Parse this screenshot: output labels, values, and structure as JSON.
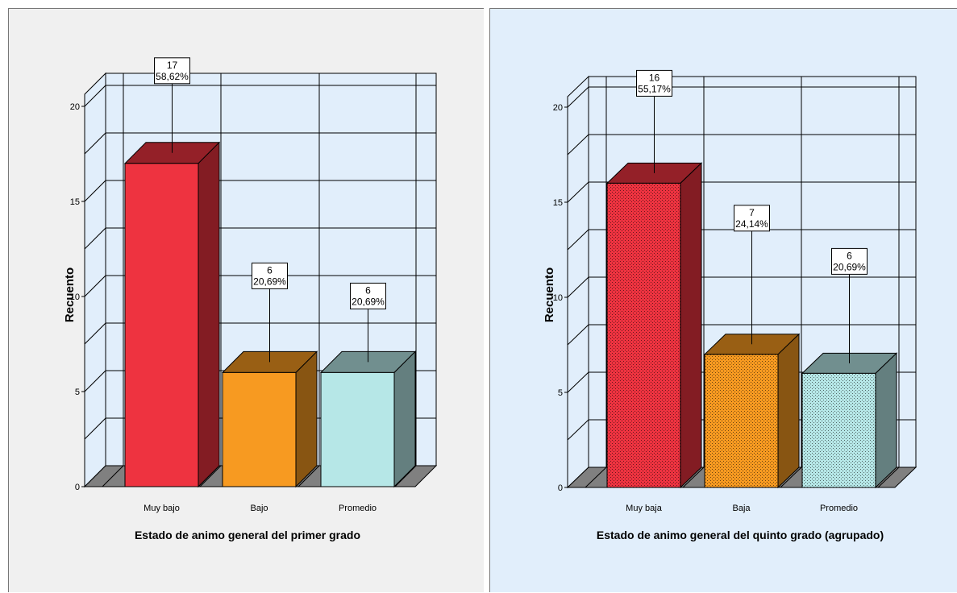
{
  "colors": {
    "wall": "#e1eefb",
    "floor": "#808080",
    "grid": "#000000",
    "muy_bajo": "#ee3340",
    "bajo": "#f79a21",
    "promedio": "#b6e7e7"
  },
  "chart_data": [
    {
      "type": "bar",
      "three_d": true,
      "pattern": "solid",
      "categories": [
        "Muy bajo",
        "Bajo",
        "Promedio"
      ],
      "values": [
        17,
        6,
        6
      ],
      "labels": [
        [
          "17",
          "58,62%"
        ],
        [
          "6",
          "20,69%"
        ],
        [
          "6",
          "20,69%"
        ]
      ],
      "colors": [
        "#ee3340",
        "#f79a21",
        "#b6e7e7"
      ],
      "xlabel": "Estado de animo general del primer grado",
      "ylabel": "Recuento",
      "ylim": [
        0,
        20
      ],
      "yticks": [
        "0",
        "5",
        "10",
        "15",
        "20"
      ],
      "grid": true
    },
    {
      "type": "bar",
      "three_d": true,
      "pattern": "dotted",
      "categories": [
        "Muy baja",
        "Baja",
        "Promedio"
      ],
      "values": [
        16,
        7,
        6
      ],
      "labels": [
        [
          "16",
          "55,17%"
        ],
        [
          "7",
          "24,14%"
        ],
        [
          "6",
          "20,69%"
        ]
      ],
      "colors": [
        "#ee3340",
        "#f79a21",
        "#b6e7e7"
      ],
      "xlabel": "Estado de animo general del quinto grado (agrupado)",
      "ylabel": "Recuento",
      "ylim": [
        0,
        20
      ],
      "yticks": [
        "0",
        "5",
        "10",
        "15",
        "20"
      ],
      "grid": true
    }
  ]
}
